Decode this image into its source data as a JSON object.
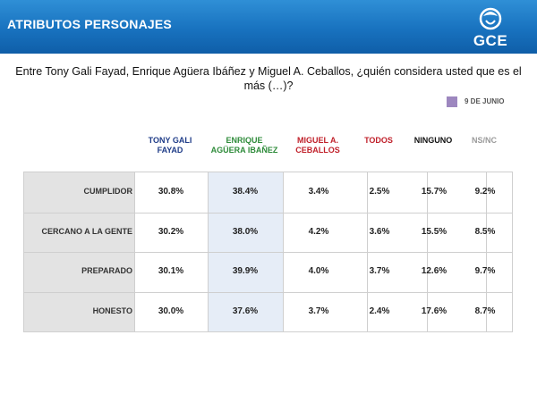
{
  "header": {
    "title": "ATRIBUTOS PERSONAJES",
    "logo_text": "GCE"
  },
  "question": "Entre Tony Gali Fayad, Enrique Agüera Ibáñez y Miguel A. Ceballos, ¿quién considera usted que es el más (…)?",
  "legend": {
    "label": "9 DE JUNIO",
    "color": "#9d87bf"
  },
  "chart_data": {
    "type": "table",
    "columns": [
      {
        "label": "TONY GALI FAYAD",
        "color": "#1f3c88"
      },
      {
        "label": "ENRIQUE AGÜERA IBAÑEZ",
        "color": "#2e8b3a"
      },
      {
        "label": "MIGUEL A. CEBALLOS",
        "color": "#c0202a"
      },
      {
        "label": "TODOS",
        "color": "#c0202a"
      },
      {
        "label": "NINGUNO",
        "color": "#111111"
      },
      {
        "label": "NS/NC",
        "color": "#9a9a9a"
      }
    ],
    "rows": [
      {
        "label": "CUMPLIDOR",
        "values": [
          "30.8%",
          "38.4%",
          "3.4%",
          "2.5%",
          "15.7%",
          "9.2%"
        ]
      },
      {
        "label": "CERCANO A LA GENTE",
        "values": [
          "30.2%",
          "38.0%",
          "4.2%",
          "3.6%",
          "15.5%",
          "8.5%"
        ]
      },
      {
        "label": "PREPARADO",
        "values": [
          "30.1%",
          "39.9%",
          "4.0%",
          "3.7%",
          "12.6%",
          "9.7%"
        ]
      },
      {
        "label": "HONESTO",
        "values": [
          "30.0%",
          "37.6%",
          "3.7%",
          "2.4%",
          "17.6%",
          "8.7%"
        ]
      }
    ]
  }
}
